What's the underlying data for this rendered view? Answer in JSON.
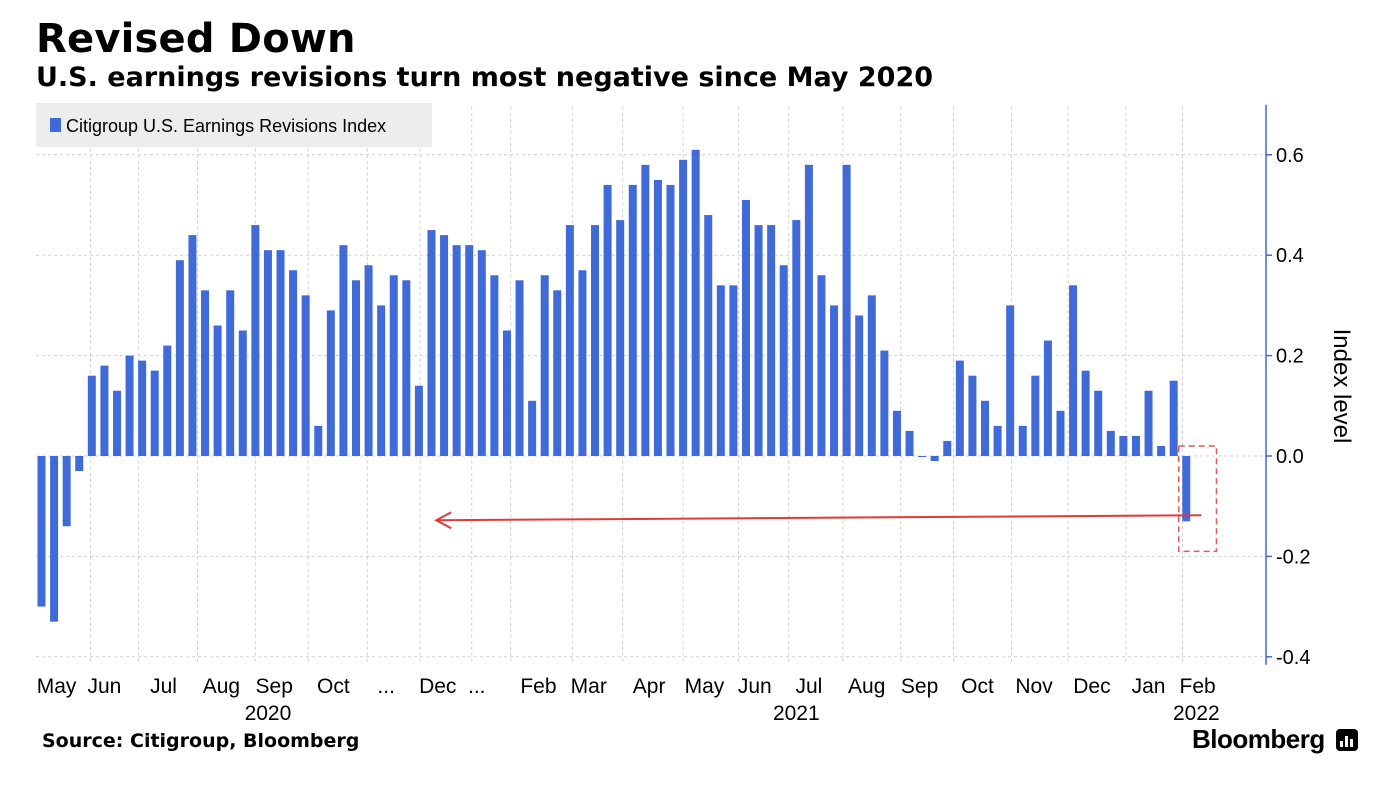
{
  "header": {
    "title": "Revised Down",
    "subtitle": "U.S. earnings revisions turn most negative since May 2020"
  },
  "footer": {
    "source": "Source: Citigroup, Bloomberg",
    "brand": "Bloomberg"
  },
  "colors": {
    "bar": "#3f6ad8",
    "grid": "#cfcfcf",
    "axis": "#3f6ad8",
    "arrow": "#e03a3a",
    "highlight_box": "#e55a5a",
    "legend_bg": "#ededed"
  },
  "chart_data": {
    "type": "bar",
    "title": "Revised Down",
    "ylabel": "Index level",
    "ylim": [
      -0.4,
      0.7
    ],
    "yticks": [
      0.6,
      0.4,
      0.2,
      0.0,
      -0.2,
      -0.4
    ],
    "ytick_labels": [
      "0.6",
      "0.4",
      "0.2",
      "0.0",
      "-0.2",
      "-0.4"
    ],
    "grid": true,
    "legend_position": "top-left",
    "series": [
      {
        "name": "Citigroup U.S. Earnings Revisions Index",
        "values": [
          -0.3,
          -0.33,
          -0.14,
          -0.03,
          0.16,
          0.18,
          0.13,
          0.2,
          0.19,
          0.17,
          0.22,
          0.39,
          0.44,
          0.33,
          0.26,
          0.33,
          0.25,
          0.46,
          0.41,
          0.41,
          0.37,
          0.32,
          0.06,
          0.29,
          0.42,
          0.35,
          0.38,
          0.3,
          0.36,
          0.35,
          0.14,
          0.45,
          0.44,
          0.42,
          0.42,
          0.41,
          0.36,
          0.25,
          0.35,
          0.11,
          0.36,
          0.33,
          0.46,
          0.37,
          0.46,
          0.54,
          0.47,
          0.54,
          0.58,
          0.55,
          0.54,
          0.59,
          0.61,
          0.48,
          0.34,
          0.34,
          0.51,
          0.46,
          0.46,
          0.38,
          0.47,
          0.58,
          0.36,
          0.3,
          0.58,
          0.28,
          0.32,
          0.21,
          0.09,
          0.05,
          0.0,
          -0.01,
          0.03,
          0.19,
          0.16,
          0.11,
          0.06,
          0.3,
          0.06,
          0.16,
          0.23,
          0.09,
          0.34,
          0.17,
          0.13,
          0.05,
          0.04,
          0.04,
          0.13,
          0.02,
          0.15,
          -0.13
        ]
      }
    ],
    "x_month_labels": [
      {
        "label": "May",
        "index": 1.2
      },
      {
        "label": "Jun",
        "index": 5.0
      },
      {
        "label": "Jul",
        "index": 9.7
      },
      {
        "label": "Aug",
        "index": 14.3
      },
      {
        "label": "Sep",
        "index": 18.5
      },
      {
        "label": "Oct",
        "index": 23.2
      },
      {
        "label": "...",
        "index": 27.4
      },
      {
        "label": "Dec",
        "index": 31.5
      },
      {
        "label": "...",
        "index": 34.6
      },
      {
        "label": "Feb",
        "index": 39.5
      },
      {
        "label": "Mar",
        "index": 43.5
      },
      {
        "label": "Apr",
        "index": 48.3
      },
      {
        "label": "May",
        "index": 52.7
      },
      {
        "label": "Jun",
        "index": 56.7
      },
      {
        "label": "Jul",
        "index": 61.0
      },
      {
        "label": "Aug",
        "index": 65.6
      },
      {
        "label": "Sep",
        "index": 69.8
      },
      {
        "label": "Oct",
        "index": 74.4
      },
      {
        "label": "Nov",
        "index": 78.9
      },
      {
        "label": "Dec",
        "index": 83.5
      },
      {
        "label": "Jan",
        "index": 88.0
      },
      {
        "label": "Feb",
        "index": 91.9
      }
    ],
    "x_year_labels": [
      {
        "label": "2020",
        "index": 18.0
      },
      {
        "label": "2021",
        "index": 60.0
      },
      {
        "label": "2022",
        "index": 91.8
      }
    ],
    "annotations": [
      {
        "type": "arrow",
        "from_index": 92.2,
        "to_index": 31.3,
        "y": -0.12
      },
      {
        "type": "highlight_box",
        "index_start": 90.4,
        "index_end": 93.4,
        "y_top": 0.02,
        "y_bottom": -0.19
      }
    ]
  }
}
